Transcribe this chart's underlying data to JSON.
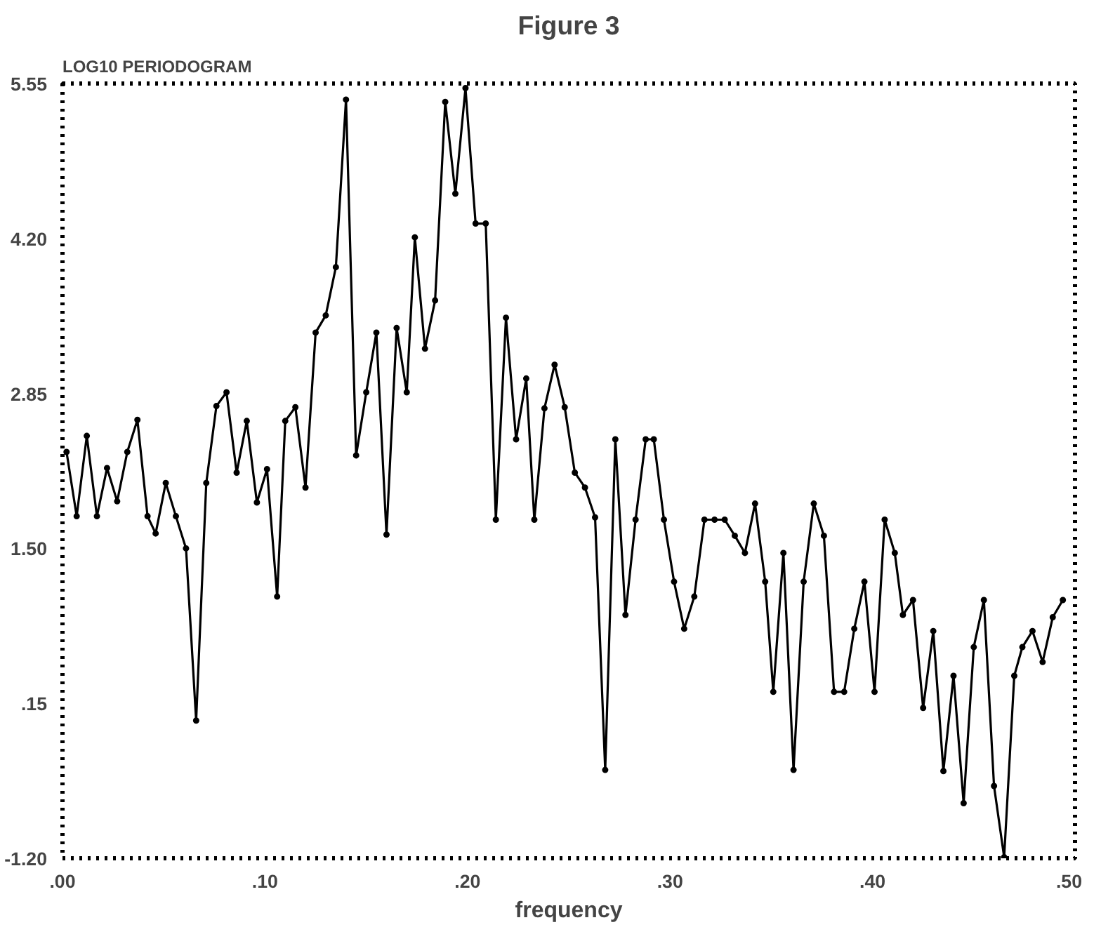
{
  "chart_data": {
    "type": "line",
    "title": "Figure 3",
    "ylabel": "LOG10 PERIODOGRAM",
    "xlabel": "frequency",
    "x": [
      0.002,
      0.007,
      0.012,
      0.017,
      0.022,
      0.027,
      0.032,
      0.037,
      0.042,
      0.046,
      0.051,
      0.056,
      0.061,
      0.066,
      0.071,
      0.076,
      0.081,
      0.086,
      0.091,
      0.096,
      0.101,
      0.106,
      0.11,
      0.115,
      0.12,
      0.125,
      0.13,
      0.135,
      0.14,
      0.145,
      0.15,
      0.155,
      0.16,
      0.165,
      0.17,
      0.174,
      0.179,
      0.184,
      0.189,
      0.194,
      0.199,
      0.204,
      0.209,
      0.214,
      0.219,
      0.224,
      0.229,
      0.233,
      0.238,
      0.243,
      0.248,
      0.253,
      0.258,
      0.263,
      0.268,
      0.273,
      0.278,
      0.283,
      0.288,
      0.292,
      0.297,
      0.302,
      0.307,
      0.312,
      0.317,
      0.322,
      0.327,
      0.332,
      0.337,
      0.342,
      0.347,
      0.351,
      0.356,
      0.361,
      0.366,
      0.371,
      0.376,
      0.381,
      0.386,
      0.391,
      0.396,
      0.401,
      0.406,
      0.411,
      0.415,
      0.42,
      0.425,
      0.43,
      0.435,
      0.44,
      0.445,
      0.45,
      0.455,
      0.46,
      0.465,
      0.47,
      0.474,
      0.479,
      0.484,
      0.489,
      0.494
    ],
    "series": [
      {
        "color": "#000000",
        "values": [
          2.34,
          1.78,
          2.48,
          1.78,
          2.2,
          1.91,
          2.34,
          2.62,
          1.78,
          1.63,
          2.07,
          1.78,
          1.5,
          0.0,
          2.07,
          2.74,
          2.86,
          2.16,
          2.61,
          1.9,
          2.19,
          1.08,
          2.61,
          2.73,
          2.03,
          3.38,
          3.53,
          3.95,
          5.41,
          2.31,
          2.86,
          3.38,
          1.62,
          3.42,
          2.86,
          4.21,
          3.24,
          3.66,
          5.39,
          4.59,
          5.51,
          4.33,
          4.33,
          1.75,
          3.51,
          2.45,
          2.98,
          1.75,
          2.72,
          3.1,
          2.73,
          2.16,
          2.03,
          1.77,
          -0.43,
          2.45,
          0.92,
          1.75,
          2.45,
          2.45,
          1.75,
          1.21,
          0.8,
          1.08,
          1.75,
          1.75,
          1.75,
          1.61,
          1.46,
          1.89,
          1.21,
          0.25,
          1.46,
          -0.43,
          1.21,
          1.89,
          1.61,
          0.25,
          0.25,
          0.8,
          1.21,
          0.25,
          1.75,
          1.46,
          0.92,
          1.05,
          0.11,
          0.78,
          -0.44,
          0.39,
          -0.72,
          0.64,
          1.05,
          -0.57,
          -1.19,
          0.39,
          0.64,
          0.78,
          0.51,
          0.9,
          1.05
        ]
      }
    ],
    "xlim": [
      0,
      0.5
    ],
    "ylim": [
      -1.2,
      5.55
    ],
    "xticks": [
      {
        "value": 0,
        "label": ".00"
      },
      {
        "value": 0.1,
        "label": ".10"
      },
      {
        "value": 0.2,
        "label": ".20"
      },
      {
        "value": 0.3,
        "label": ".30"
      },
      {
        "value": 0.4,
        "label": ".40"
      },
      {
        "value": 0.5,
        "label": ".50"
      }
    ],
    "yticks": [
      {
        "value": -1.2,
        "label": "-1.20"
      },
      {
        "value": 0.15,
        "label": ".15"
      },
      {
        "value": 1.5,
        "label": "1.50"
      },
      {
        "value": 2.85,
        "label": "2.85"
      },
      {
        "value": 4.2,
        "label": "4.20"
      },
      {
        "value": 5.55,
        "label": "5.55"
      }
    ],
    "marker": "circle",
    "line_style": "solid",
    "grid": false
  }
}
